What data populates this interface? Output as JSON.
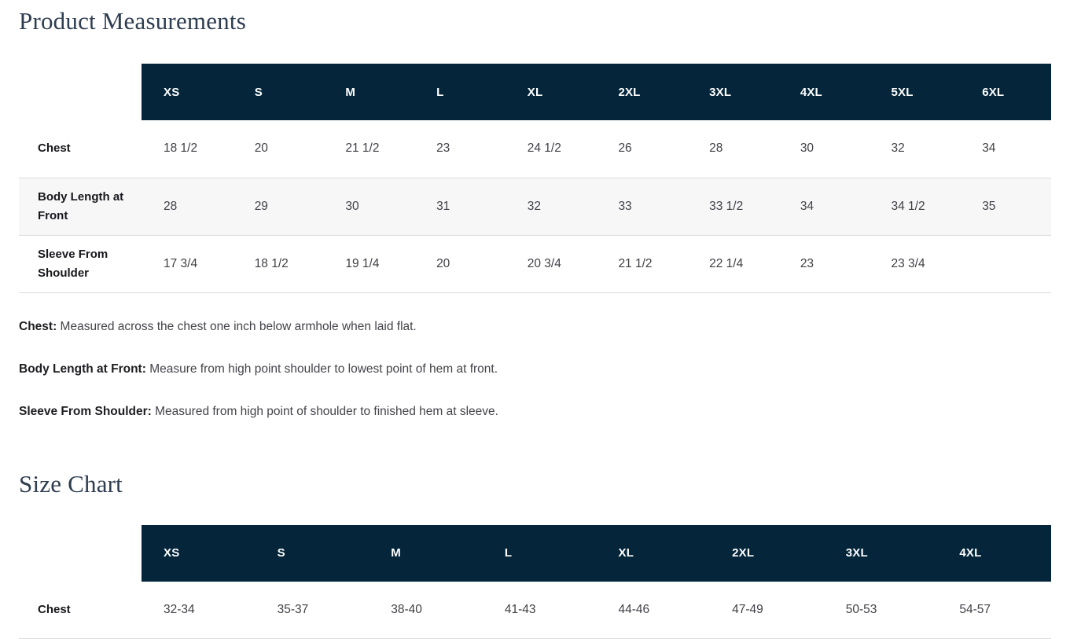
{
  "page": {
    "product_measurements_title": "Product Measurements",
    "size_chart_title": "Size Chart"
  },
  "colors": {
    "header_bg": "#04253a",
    "title_text": "#2e3d50",
    "stripe_bg": "#f7f7f8",
    "divider": "#dbdcde"
  },
  "product_table": {
    "sizes": [
      "XS",
      "S",
      "M",
      "L",
      "XL",
      "2XL",
      "3XL",
      "4XL",
      "5XL",
      "6XL"
    ],
    "rows": [
      {
        "label": "Chest",
        "values": [
          "18 1/2",
          "20",
          "21 1/2",
          "23",
          "24 1/2",
          "26",
          "28",
          "30",
          "32",
          "34"
        ]
      },
      {
        "label": "Body Length at Front",
        "values": [
          "28",
          "29",
          "30",
          "31",
          "32",
          "33",
          "33 1/2",
          "34",
          "34 1/2",
          "35"
        ]
      },
      {
        "label": "Sleeve From Shoulder",
        "values": [
          "17 3/4",
          "18 1/2",
          "19 1/4",
          "20",
          "20 3/4",
          "21 1/2",
          "22 1/4",
          "23",
          "23 3/4",
          ""
        ]
      }
    ]
  },
  "definitions": [
    {
      "term": "Chest:",
      "text": "Measured across the chest one inch below armhole when laid flat."
    },
    {
      "term": "Body Length at Front:",
      "text": "Measure from high point shoulder to lowest point of hem at front."
    },
    {
      "term": "Sleeve From Shoulder:",
      "text": "Measured from high point of shoulder to finished hem at sleeve."
    }
  ],
  "size_chart_table": {
    "sizes": [
      "XS",
      "S",
      "M",
      "L",
      "XL",
      "2XL",
      "3XL",
      "4XL"
    ],
    "rows": [
      {
        "label": "Chest",
        "values": [
          "32-34",
          "35-37",
          "38-40",
          "41-43",
          "44-46",
          "47-49",
          "50-53",
          "54-57"
        ]
      }
    ]
  }
}
